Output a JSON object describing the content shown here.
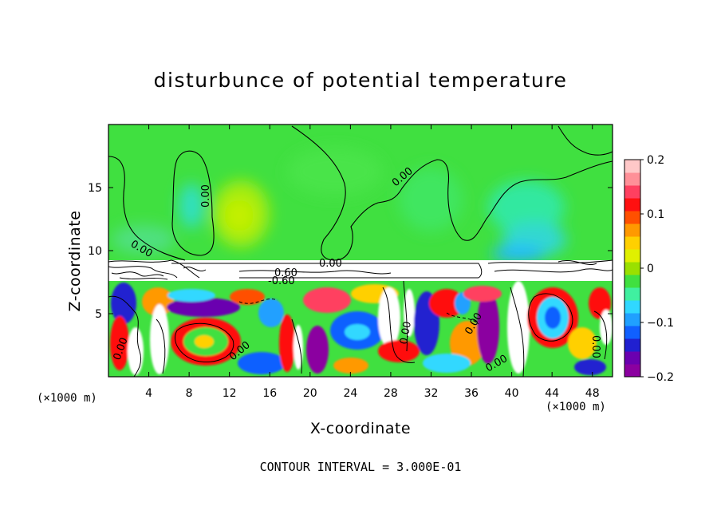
{
  "chart_data": {
    "type": "heatmap",
    "title": "disturbunce of potential temperature",
    "xlabel": "X-coordinate",
    "ylabel": "Z-coordinate",
    "x_unit": "(×1000 m)",
    "z_unit": "(×1000 m)",
    "xlim": [
      0,
      50
    ],
    "ylim": [
      0,
      20
    ],
    "x_ticks": [
      4,
      8,
      12,
      16,
      20,
      24,
      28,
      32,
      36,
      40,
      44,
      48
    ],
    "y_ticks": [
      5,
      10,
      15
    ],
    "contour_interval": "CONTOUR INTERVAL = 3.000E-01",
    "contour_labels": [
      "0.00",
      "0.00",
      "0.00",
      "0.00",
      "-0.60",
      "0.60",
      "0.00",
      "0.00",
      "0.00",
      "0.00",
      "0.00",
      "0.00"
    ],
    "colorbar": {
      "range": [
        -0.2,
        0.2
      ],
      "tick_labels": [
        "0.2",
        "0.1",
        "0",
        "−0.1",
        "−0.2"
      ],
      "tick_values": [
        0.2,
        0.1,
        0,
        -0.1,
        -0.2
      ],
      "colors": [
        "#8b00a0",
        "#6a00b0",
        "#2020d0",
        "#1060ff",
        "#20a0ff",
        "#30d8ff",
        "#40f0a0",
        "#40e040",
        "#9ae000",
        "#e0f000",
        "#ffd000",
        "#ff9900",
        "#ff5000",
        "#ff1010",
        "#ff4060",
        "#ff9098",
        "#ffc8c8"
      ]
    }
  }
}
